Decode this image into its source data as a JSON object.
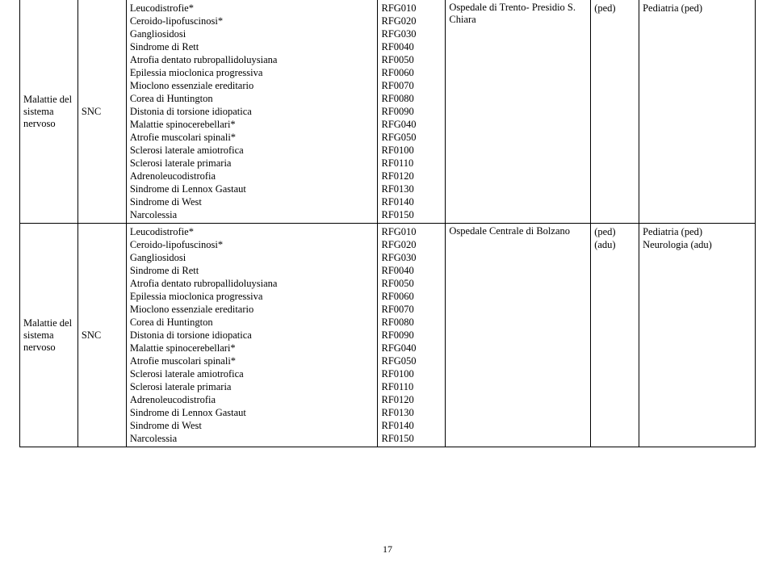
{
  "pageNumber": "17",
  "rows": [
    {
      "category": "Malattie del sistema nervoso",
      "sub": "SNC",
      "diseases": [
        {
          "name": "Leucodistrofie*",
          "code": "RFG010"
        },
        {
          "name": "Ceroido-lipofuscinosi*",
          "code": "RFG020"
        },
        {
          "name": "Gangliosidosi",
          "code": "RFG030"
        },
        {
          "name": "Sindrome di Rett",
          "code": "RF0040"
        },
        {
          "name": "Atrofia dentato rubropallidoluysiana",
          "code": "RF0050"
        },
        {
          "name": "Epilessia mioclonica progressiva",
          "code": "RF0060"
        },
        {
          "name": "Mioclono essenziale ereditario",
          "code": "RF0070"
        },
        {
          "name": "Corea di Huntington",
          "code": "RF0080"
        },
        {
          "name": "Distonia di torsione idiopatica",
          "code": "RF0090"
        },
        {
          "name": "Malattie spinocerebellari*",
          "code": "RFG040"
        },
        {
          "name": "Atrofie muscolari spinali*",
          "code": "RFG050"
        },
        {
          "name": "Sclerosi laterale amiotrofica",
          "code": "RF0100"
        },
        {
          "name": "Sclerosi laterale primaria",
          "code": "RF0110"
        },
        {
          "name": "Adrenoleucodistrofia",
          "code": "RF0120"
        },
        {
          "name": "Sindrome di Lennox Gastaut",
          "code": "RF0130"
        },
        {
          "name": "Sindrome di West",
          "code": "RF0140"
        },
        {
          "name": "Narcolessia",
          "code": "RF0150"
        }
      ],
      "hospital": "Ospedale di Trento- Presidio S. Chiara",
      "flags": [
        "(ped)"
      ],
      "spec": [
        "Pediatria (ped)"
      ],
      "categoryNoTop": true
    },
    {
      "category": "Malattie del sistema nervoso",
      "sub": "SNC",
      "diseases": [
        {
          "name": "Leucodistrofie*",
          "code": "RFG010"
        },
        {
          "name": "Ceroido-lipofuscinosi*",
          "code": "RFG020"
        },
        {
          "name": "Gangliosidosi",
          "code": "RFG030"
        },
        {
          "name": "Sindrome di Rett",
          "code": "RF0040"
        },
        {
          "name": "Atrofia dentato rubropallidoluysiana",
          "code": "RF0050"
        },
        {
          "name": "Epilessia mioclonica progressiva",
          "code": "RF0060"
        },
        {
          "name": "Mioclono essenziale ereditario",
          "code": "RF0070"
        },
        {
          "name": "Corea di Huntington",
          "code": "RF0080"
        },
        {
          "name": "Distonia di torsione idiopatica",
          "code": "RF0090"
        },
        {
          "name": "Malattie spinocerebellari*",
          "code": "RFG040"
        },
        {
          "name": "Atrofie muscolari spinali*",
          "code": "RFG050"
        },
        {
          "name": "Sclerosi laterale amiotrofica",
          "code": "RF0100"
        },
        {
          "name": "Sclerosi laterale primaria",
          "code": "RF0110"
        },
        {
          "name": "Adrenoleucodistrofia",
          "code": "RF0120"
        },
        {
          "name": "Sindrome di Lennox Gastaut",
          "code": "RF0130"
        },
        {
          "name": "Sindrome di West",
          "code": "RF0140"
        },
        {
          "name": "Narcolessia",
          "code": "RF0150"
        }
      ],
      "hospital": "Ospedale Centrale di Bolzano",
      "flags": [
        "(ped)",
        "(adu)"
      ],
      "spec": [
        "Pediatria (ped)",
        "Neurologia (adu)"
      ],
      "categoryNoTop": false
    }
  ]
}
